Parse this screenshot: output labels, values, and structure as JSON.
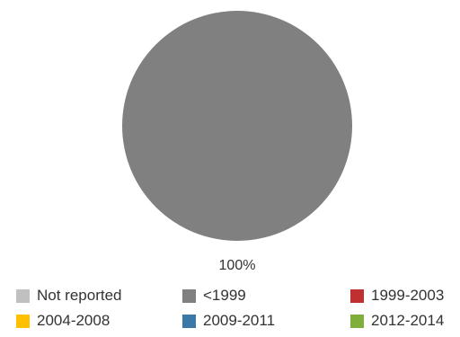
{
  "chart_data": {
    "type": "pie",
    "categories": [
      "Not reported",
      "<1999",
      "1999-2003",
      "2004-2008",
      "2009-2011",
      "2012-2014"
    ],
    "values": [
      0,
      100,
      0,
      0,
      0,
      0
    ],
    "colors": [
      "#c0c0c0",
      "#808080",
      "#c03030",
      "#ffc000",
      "#3a78a8",
      "#7faf3a"
    ],
    "data_labels": [
      "100%"
    ],
    "legend_position": "bottom"
  }
}
